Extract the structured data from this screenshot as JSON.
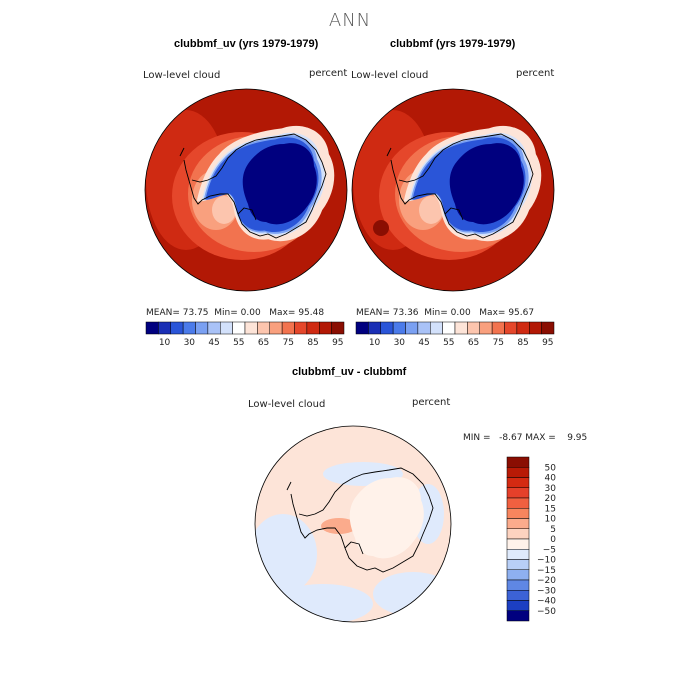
{
  "title": "ANN",
  "panels": [
    {
      "title": "clubbmf_uv (yrs 1979-1979)",
      "left_label": "Low-level cloud",
      "right_label": "percent",
      "stats": {
        "mean_label": "MEAN=",
        "mean": "73.75",
        "min_label": "Min=",
        "min": "0.00",
        "max_label": "Max=",
        "max": "95.48"
      }
    },
    {
      "title": "clubbmf (yrs 1979-1979)",
      "left_label": "Low-level cloud",
      "right_label": "percent",
      "stats": {
        "mean_label": "MEAN=",
        "mean": "73.36",
        "min_label": "Min=",
        "min": "0.00",
        "max_label": "Max=",
        "max": "95.67"
      }
    }
  ],
  "diff_panel": {
    "title": "clubbmf_uv - clubbmf",
    "left_label": "Low-level cloud",
    "right_label": "percent",
    "stats": "MIN =   -8.67 MAX =    9.95"
  },
  "chart_data": [
    {
      "type": "heatmap",
      "title": "clubbmf_uv (yrs 1979-1979)",
      "projection": "polar stereographic, south pole",
      "variable": "Low-level cloud",
      "units": "percent",
      "mean": 73.75,
      "min": 0.0,
      "max": 95.48,
      "colorbar_levels": [
        10,
        30,
        45,
        55,
        65,
        75,
        85,
        95
      ],
      "colorbar_colors": [
        "#00007f",
        "#1a2fb5",
        "#2a55d8",
        "#4b7bea",
        "#7aa0f2",
        "#a9c2f7",
        "#d3e1fb",
        "#ffffff",
        "#fde4d8",
        "#fcc5ae",
        "#f9a07e",
        "#f2734f",
        "#e5472b",
        "#cf2a12",
        "#b21805",
        "#8a0e02"
      ]
    },
    {
      "type": "heatmap",
      "title": "clubbmf (yrs 1979-1979)",
      "projection": "polar stereographic, south pole",
      "variable": "Low-level cloud",
      "units": "percent",
      "mean": 73.36,
      "min": 0.0,
      "max": 95.67,
      "colorbar_levels": [
        10,
        30,
        45,
        55,
        65,
        75,
        85,
        95
      ],
      "colorbar_colors": [
        "#00007f",
        "#1a2fb5",
        "#2a55d8",
        "#4b7bea",
        "#7aa0f2",
        "#a9c2f7",
        "#d3e1fb",
        "#ffffff",
        "#fde4d8",
        "#fcc5ae",
        "#f9a07e",
        "#f2734f",
        "#e5472b",
        "#cf2a12",
        "#b21805",
        "#8a0e02"
      ]
    },
    {
      "type": "heatmap",
      "title": "clubbmf_uv - clubbmf",
      "projection": "polar stereographic, south pole",
      "variable": "Low-level cloud",
      "units": "percent",
      "min": -8.67,
      "max": 9.95,
      "colorbar_levels": [
        50,
        40,
        30,
        20,
        15,
        10,
        5,
        0,
        -5,
        -10,
        -15,
        -20,
        -30,
        -40,
        -50
      ],
      "colorbar_colors": [
        "#8a0e02",
        "#b81a06",
        "#d42a12",
        "#e5402a",
        "#f06040",
        "#f7855e",
        "#fbab8c",
        "#fdd3c0",
        "#fff2ea",
        "#dfeafc",
        "#b8cff7",
        "#8eb0f0",
        "#5f87e4",
        "#3c62d6",
        "#1c3fc2",
        "#00007f"
      ]
    }
  ]
}
